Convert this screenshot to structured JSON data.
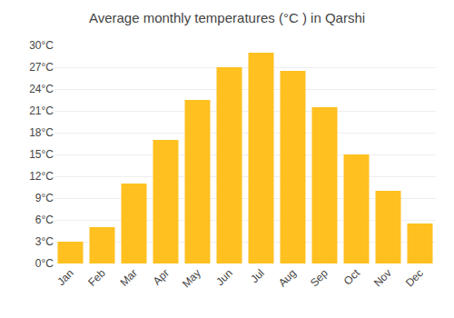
{
  "chart_data": {
    "type": "bar",
    "title": "Average monthly temperatures (°C ) in Qarshi",
    "categories": [
      "Jan",
      "Feb",
      "Mar",
      "Apr",
      "May",
      "Jun",
      "Jul",
      "Aug",
      "Sep",
      "Oct",
      "Nov",
      "Dec"
    ],
    "values": [
      3,
      5,
      11,
      17,
      22.5,
      27,
      29,
      26.5,
      21.5,
      15,
      10,
      5.5
    ],
    "color": "#FFC020",
    "ylim": [
      0,
      30
    ],
    "yticks": [
      {
        "value": 0,
        "label": "0°C"
      },
      {
        "value": 3,
        "label": "3°C"
      },
      {
        "value": 6,
        "label": "6°C"
      },
      {
        "value": 9,
        "label": "9°C"
      },
      {
        "value": 12,
        "label": "12°C"
      },
      {
        "value": 15,
        "label": "15°C"
      },
      {
        "value": 18,
        "label": "18°C"
      },
      {
        "value": 21,
        "label": "21°C"
      },
      {
        "value": 24,
        "label": "24°C"
      },
      {
        "value": 27,
        "label": "27°C"
      },
      {
        "value": 30,
        "label": "30°C"
      }
    ],
    "grid": true
  }
}
